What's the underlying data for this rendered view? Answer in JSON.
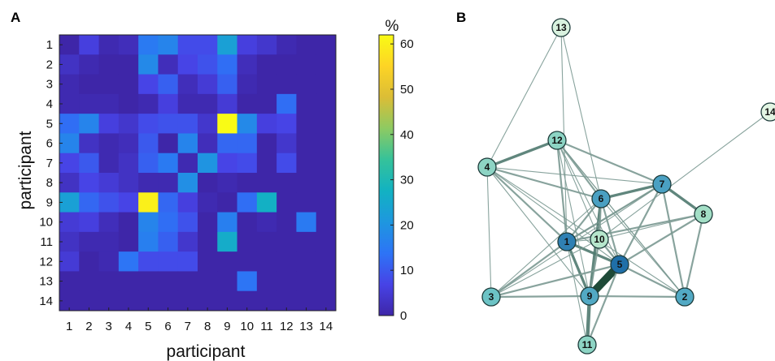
{
  "panels": {
    "a_label": "A",
    "b_label": "B"
  },
  "chart_data": [
    {
      "type": "heatmap",
      "title": "",
      "xlabel": "participant",
      "ylabel": "participant",
      "x_categories": [
        "1",
        "2",
        "3",
        "4",
        "5",
        "6",
        "7",
        "8",
        "9",
        "10",
        "11",
        "12",
        "13",
        "14"
      ],
      "y_categories": [
        "1",
        "2",
        "3",
        "4",
        "5",
        "6",
        "7",
        "8",
        "9",
        "10",
        "11",
        "12",
        "13",
        "14"
      ],
      "values": [
        [
          0,
          6,
          1,
          2,
          15,
          17,
          8,
          8,
          23,
          6,
          4,
          1,
          0,
          0
        ],
        [
          3,
          1,
          0,
          0,
          18,
          2,
          7,
          9,
          13,
          2,
          0,
          0,
          0,
          0
        ],
        [
          1,
          0,
          0,
          0,
          7,
          11,
          2,
          5,
          11,
          1,
          0,
          0,
          0,
          0
        ],
        [
          1,
          1,
          1,
          0,
          1,
          6,
          1,
          1,
          5,
          0,
          0,
          13,
          0,
          0
        ],
        [
          13,
          17,
          6,
          4,
          8,
          9,
          9,
          4,
          62,
          18,
          6,
          7,
          0,
          0
        ],
        [
          17,
          3,
          1,
          2,
          10,
          0,
          17,
          2,
          12,
          12,
          0,
          4,
          0,
          0
        ],
        [
          7,
          10,
          1,
          3,
          11,
          15,
          1,
          20,
          7,
          8,
          0,
          8,
          0,
          0
        ],
        [
          3,
          7,
          5,
          3,
          1,
          1,
          19,
          0,
          1,
          0,
          0,
          0,
          0,
          0
        ],
        [
          23,
          12,
          9,
          7,
          60,
          12,
          6,
          1,
          0,
          13,
          27,
          0,
          0,
          0
        ],
        [
          5,
          6,
          2,
          0,
          17,
          13,
          9,
          0,
          16,
          0,
          1,
          0,
          15,
          0
        ],
        [
          3,
          1,
          1,
          0,
          16,
          11,
          4,
          0,
          26,
          0,
          0,
          0,
          0,
          0
        ],
        [
          5,
          0,
          1,
          14,
          8,
          8,
          8,
          0,
          0,
          0,
          0,
          0,
          0,
          0
        ],
        [
          0,
          0,
          0,
          0,
          0,
          0,
          0,
          0,
          0,
          14,
          0,
          0,
          0,
          0
        ],
        [
          0,
          0,
          0,
          0,
          0,
          0,
          0,
          0,
          0,
          0,
          0,
          0,
          0,
          0
        ]
      ],
      "colorbar": {
        "label": "%",
        "min": 0,
        "max": 62,
        "ticks": [
          0,
          10,
          20,
          30,
          40,
          50,
          60
        ]
      },
      "colormap": [
        "#3e26a8",
        "#4743e6",
        "#2d74f6",
        "#1e97df",
        "#12b2c2",
        "#35c29a",
        "#8dca62",
        "#dbbd36",
        "#fdd425",
        "#f9fb15"
      ]
    },
    {
      "type": "network",
      "nodes": [
        {
          "id": "1",
          "label": "1"
        },
        {
          "id": "2",
          "label": "2"
        },
        {
          "id": "3",
          "label": "3"
        },
        {
          "id": "4",
          "label": "4"
        },
        {
          "id": "5",
          "label": "5"
        },
        {
          "id": "6",
          "label": "6"
        },
        {
          "id": "7",
          "label": "7"
        },
        {
          "id": "8",
          "label": "8"
        },
        {
          "id": "9",
          "label": "9"
        },
        {
          "id": "10",
          "label": "10"
        },
        {
          "id": "11",
          "label": "11"
        },
        {
          "id": "12",
          "label": "12"
        },
        {
          "id": "13",
          "label": "13"
        },
        {
          "id": "14",
          "label": "14"
        }
      ],
      "edges": [
        [
          "5",
          "9",
          12
        ],
        [
          "9",
          "11",
          4
        ],
        [
          "1",
          "5",
          3
        ],
        [
          "1",
          "9",
          3
        ],
        [
          "1",
          "12",
          2
        ],
        [
          "1",
          "6",
          2
        ],
        [
          "1",
          "7",
          2
        ],
        [
          "6",
          "7",
          3
        ],
        [
          "6",
          "9",
          3
        ],
        [
          "6",
          "5",
          2
        ],
        [
          "6",
          "10",
          2
        ],
        [
          "6",
          "12",
          2
        ],
        [
          "6",
          "4",
          2
        ],
        [
          "7",
          "8",
          3
        ],
        [
          "7",
          "2",
          2
        ],
        [
          "7",
          "12",
          2
        ],
        [
          "7",
          "5",
          2
        ],
        [
          "7",
          "1",
          1
        ],
        [
          "4",
          "12",
          3
        ],
        [
          "4",
          "1",
          2
        ],
        [
          "4",
          "3",
          1
        ],
        [
          "4",
          "5",
          1
        ],
        [
          "4",
          "9",
          1
        ],
        [
          "4",
          "2",
          1
        ],
        [
          "4",
          "7",
          1
        ],
        [
          "3",
          "1",
          2
        ],
        [
          "3",
          "5",
          2
        ],
        [
          "3",
          "9",
          2
        ],
        [
          "3",
          "6",
          1
        ],
        [
          "3",
          "10",
          1
        ],
        [
          "3",
          "7",
          1
        ],
        [
          "2",
          "5",
          2
        ],
        [
          "2",
          "9",
          2
        ],
        [
          "2",
          "8",
          2
        ],
        [
          "2",
          "6",
          1
        ],
        [
          "2",
          "12",
          1
        ],
        [
          "8",
          "5",
          2
        ],
        [
          "8",
          "1",
          2
        ],
        [
          "8",
          "10",
          1
        ],
        [
          "10",
          "5",
          2
        ],
        [
          "10",
          "9",
          2
        ],
        [
          "10",
          "1",
          1
        ],
        [
          "12",
          "9",
          1
        ],
        [
          "12",
          "5",
          1
        ],
        [
          "12",
          "10",
          1
        ],
        [
          "12",
          "2",
          1
        ],
        [
          "13",
          "4",
          1
        ],
        [
          "13",
          "6",
          1
        ],
        [
          "13",
          "1",
          1
        ],
        [
          "14",
          "10",
          1
        ],
        [
          "11",
          "5",
          2
        ],
        [
          "11",
          "1",
          1
        ]
      ]
    }
  ]
}
